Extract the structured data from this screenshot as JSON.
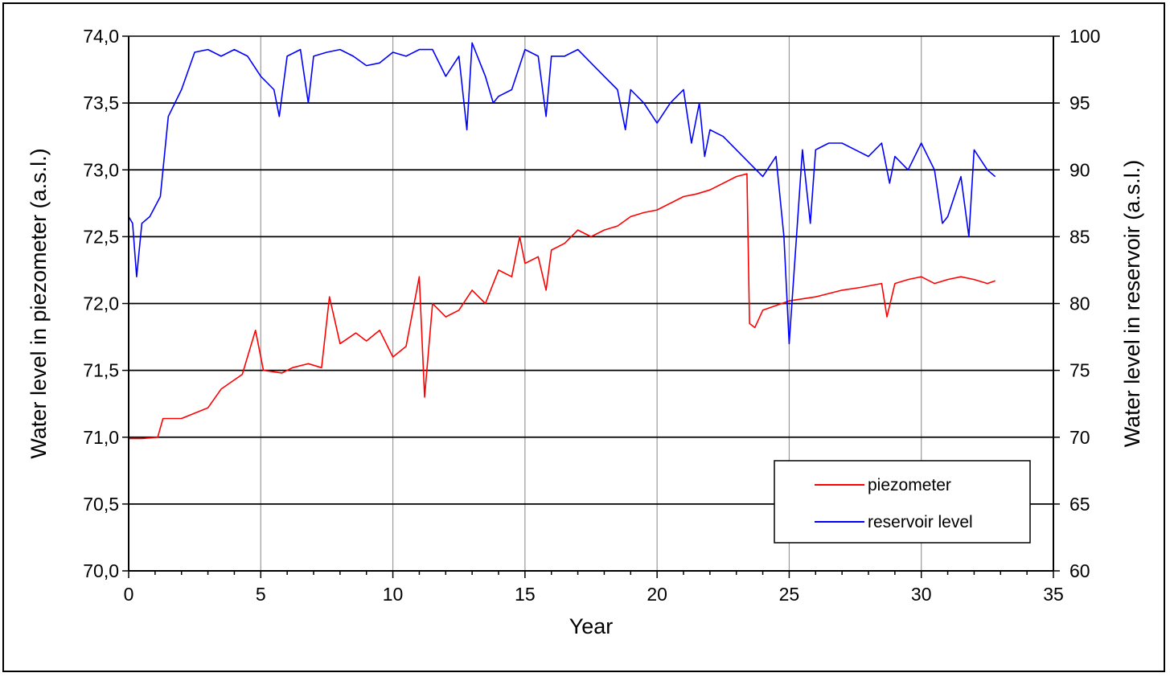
{
  "chart_data": {
    "type": "line",
    "xlabel": "Year",
    "ylabel_left": "Water level  in piezometer  (a.s.l.)",
    "ylabel_right": "Water level  in reservoir  (a.s.l.)",
    "xlim": [
      0,
      35
    ],
    "ylim_left": [
      70.0,
      74.0
    ],
    "ylim_right": [
      60,
      100
    ],
    "x_ticks": [
      "0",
      "5",
      "10",
      "15",
      "20",
      "25",
      "30",
      "35"
    ],
    "y_left_ticks": [
      "70,0",
      "70,5",
      "71,0",
      "71,5",
      "72,0",
      "72,5",
      "73,0",
      "73,5",
      "74,0"
    ],
    "y_right_ticks": [
      "60",
      "65",
      "70",
      "75",
      "80",
      "85",
      "90",
      "95",
      "100"
    ],
    "grid": true,
    "legend_position": "bottom-right",
    "colors": {
      "piezometer": "#ff0000",
      "reservoir": "#0000ff"
    },
    "series": [
      {
        "name": "piezometer",
        "axis": "left",
        "x": [
          0.0,
          0.5,
          1.1,
          1.3,
          2.0,
          3.0,
          3.5,
          4.3,
          4.8,
          5.1,
          5.8,
          6.2,
          6.8,
          7.3,
          7.6,
          8.0,
          8.6,
          9.0,
          9.5,
          10.0,
          10.5,
          11.0,
          11.2,
          11.5,
          12.0,
          12.5,
          13.0,
          13.5,
          14.0,
          14.5,
          14.8,
          15.0,
          15.5,
          15.8,
          16.0,
          16.5,
          17.0,
          17.5,
          18.0,
          18.5,
          19.0,
          19.5,
          20.0,
          21.0,
          21.5,
          22.0,
          23.0,
          23.4,
          23.5,
          23.7,
          24.0,
          25.0,
          26.0,
          27.0,
          27.7,
          28.5,
          28.7,
          29.0,
          29.5,
          30.0,
          30.5,
          31.0,
          31.5,
          32.0,
          32.5,
          32.8
        ],
        "y": [
          70.99,
          70.99,
          71.0,
          71.14,
          71.14,
          71.22,
          71.36,
          71.47,
          71.8,
          71.5,
          71.48,
          71.52,
          71.55,
          71.52,
          72.05,
          71.7,
          71.78,
          71.72,
          71.8,
          71.6,
          71.68,
          72.2,
          71.3,
          72.0,
          71.9,
          71.95,
          72.1,
          72.0,
          72.25,
          72.2,
          72.5,
          72.3,
          72.35,
          72.1,
          72.4,
          72.45,
          72.55,
          72.5,
          72.55,
          72.58,
          72.65,
          72.68,
          72.7,
          72.8,
          72.82,
          72.85,
          72.95,
          72.97,
          71.85,
          71.82,
          71.95,
          72.02,
          72.05,
          72.1,
          72.12,
          72.15,
          71.9,
          72.15,
          72.18,
          72.2,
          72.15,
          72.18,
          72.2,
          72.18,
          72.15,
          72.17
        ]
      },
      {
        "name": "reservoir level",
        "axis": "right",
        "x": [
          0.0,
          0.15,
          0.3,
          0.5,
          0.8,
          1.2,
          1.5,
          2.0,
          2.5,
          3.0,
          3.5,
          4.0,
          4.5,
          5.0,
          5.5,
          5.7,
          6.0,
          6.5,
          6.8,
          7.0,
          7.5,
          8.0,
          8.5,
          9.0,
          9.5,
          10.0,
          10.5,
          11.0,
          11.5,
          12.0,
          12.5,
          12.8,
          13.0,
          13.5,
          13.8,
          14.0,
          14.5,
          15.0,
          15.5,
          15.8,
          16.0,
          16.5,
          17.0,
          17.5,
          18.0,
          18.5,
          18.8,
          19.0,
          19.5,
          20.0,
          20.5,
          21.0,
          21.3,
          21.6,
          21.8,
          22.0,
          22.5,
          23.0,
          23.5,
          24.0,
          24.5,
          24.8,
          25.0,
          25.5,
          25.8,
          26.0,
          26.5,
          27.0,
          27.5,
          28.0,
          28.5,
          28.8,
          29.0,
          29.5,
          30.0,
          30.5,
          30.8,
          31.0,
          31.5,
          31.8,
          32.0,
          32.5,
          32.8
        ],
        "y": [
          86.5,
          86.0,
          82.0,
          86.0,
          86.5,
          88.0,
          94.0,
          96.0,
          98.8,
          99.0,
          98.5,
          99.0,
          98.5,
          97.0,
          96.0,
          94.0,
          98.5,
          99.0,
          95.0,
          98.5,
          98.8,
          99.0,
          98.5,
          97.8,
          98.0,
          98.8,
          98.5,
          99.0,
          99.0,
          97.0,
          98.5,
          93.0,
          99.5,
          97.0,
          95.0,
          95.5,
          96.0,
          99.0,
          98.5,
          94.0,
          98.5,
          98.5,
          99.0,
          98.0,
          97.0,
          96.0,
          93.0,
          96.0,
          95.0,
          93.5,
          95.0,
          96.0,
          92.0,
          95.0,
          91.0,
          93.0,
          92.5,
          91.5,
          90.5,
          89.5,
          91.0,
          85.0,
          77.0,
          91.5,
          86.0,
          91.5,
          92.0,
          92.0,
          91.5,
          91.0,
          92.0,
          89.0,
          91.0,
          90.0,
          92.0,
          90.0,
          86.0,
          86.5,
          89.5,
          85.0,
          91.5,
          90.0,
          89.5
        ]
      }
    ]
  }
}
